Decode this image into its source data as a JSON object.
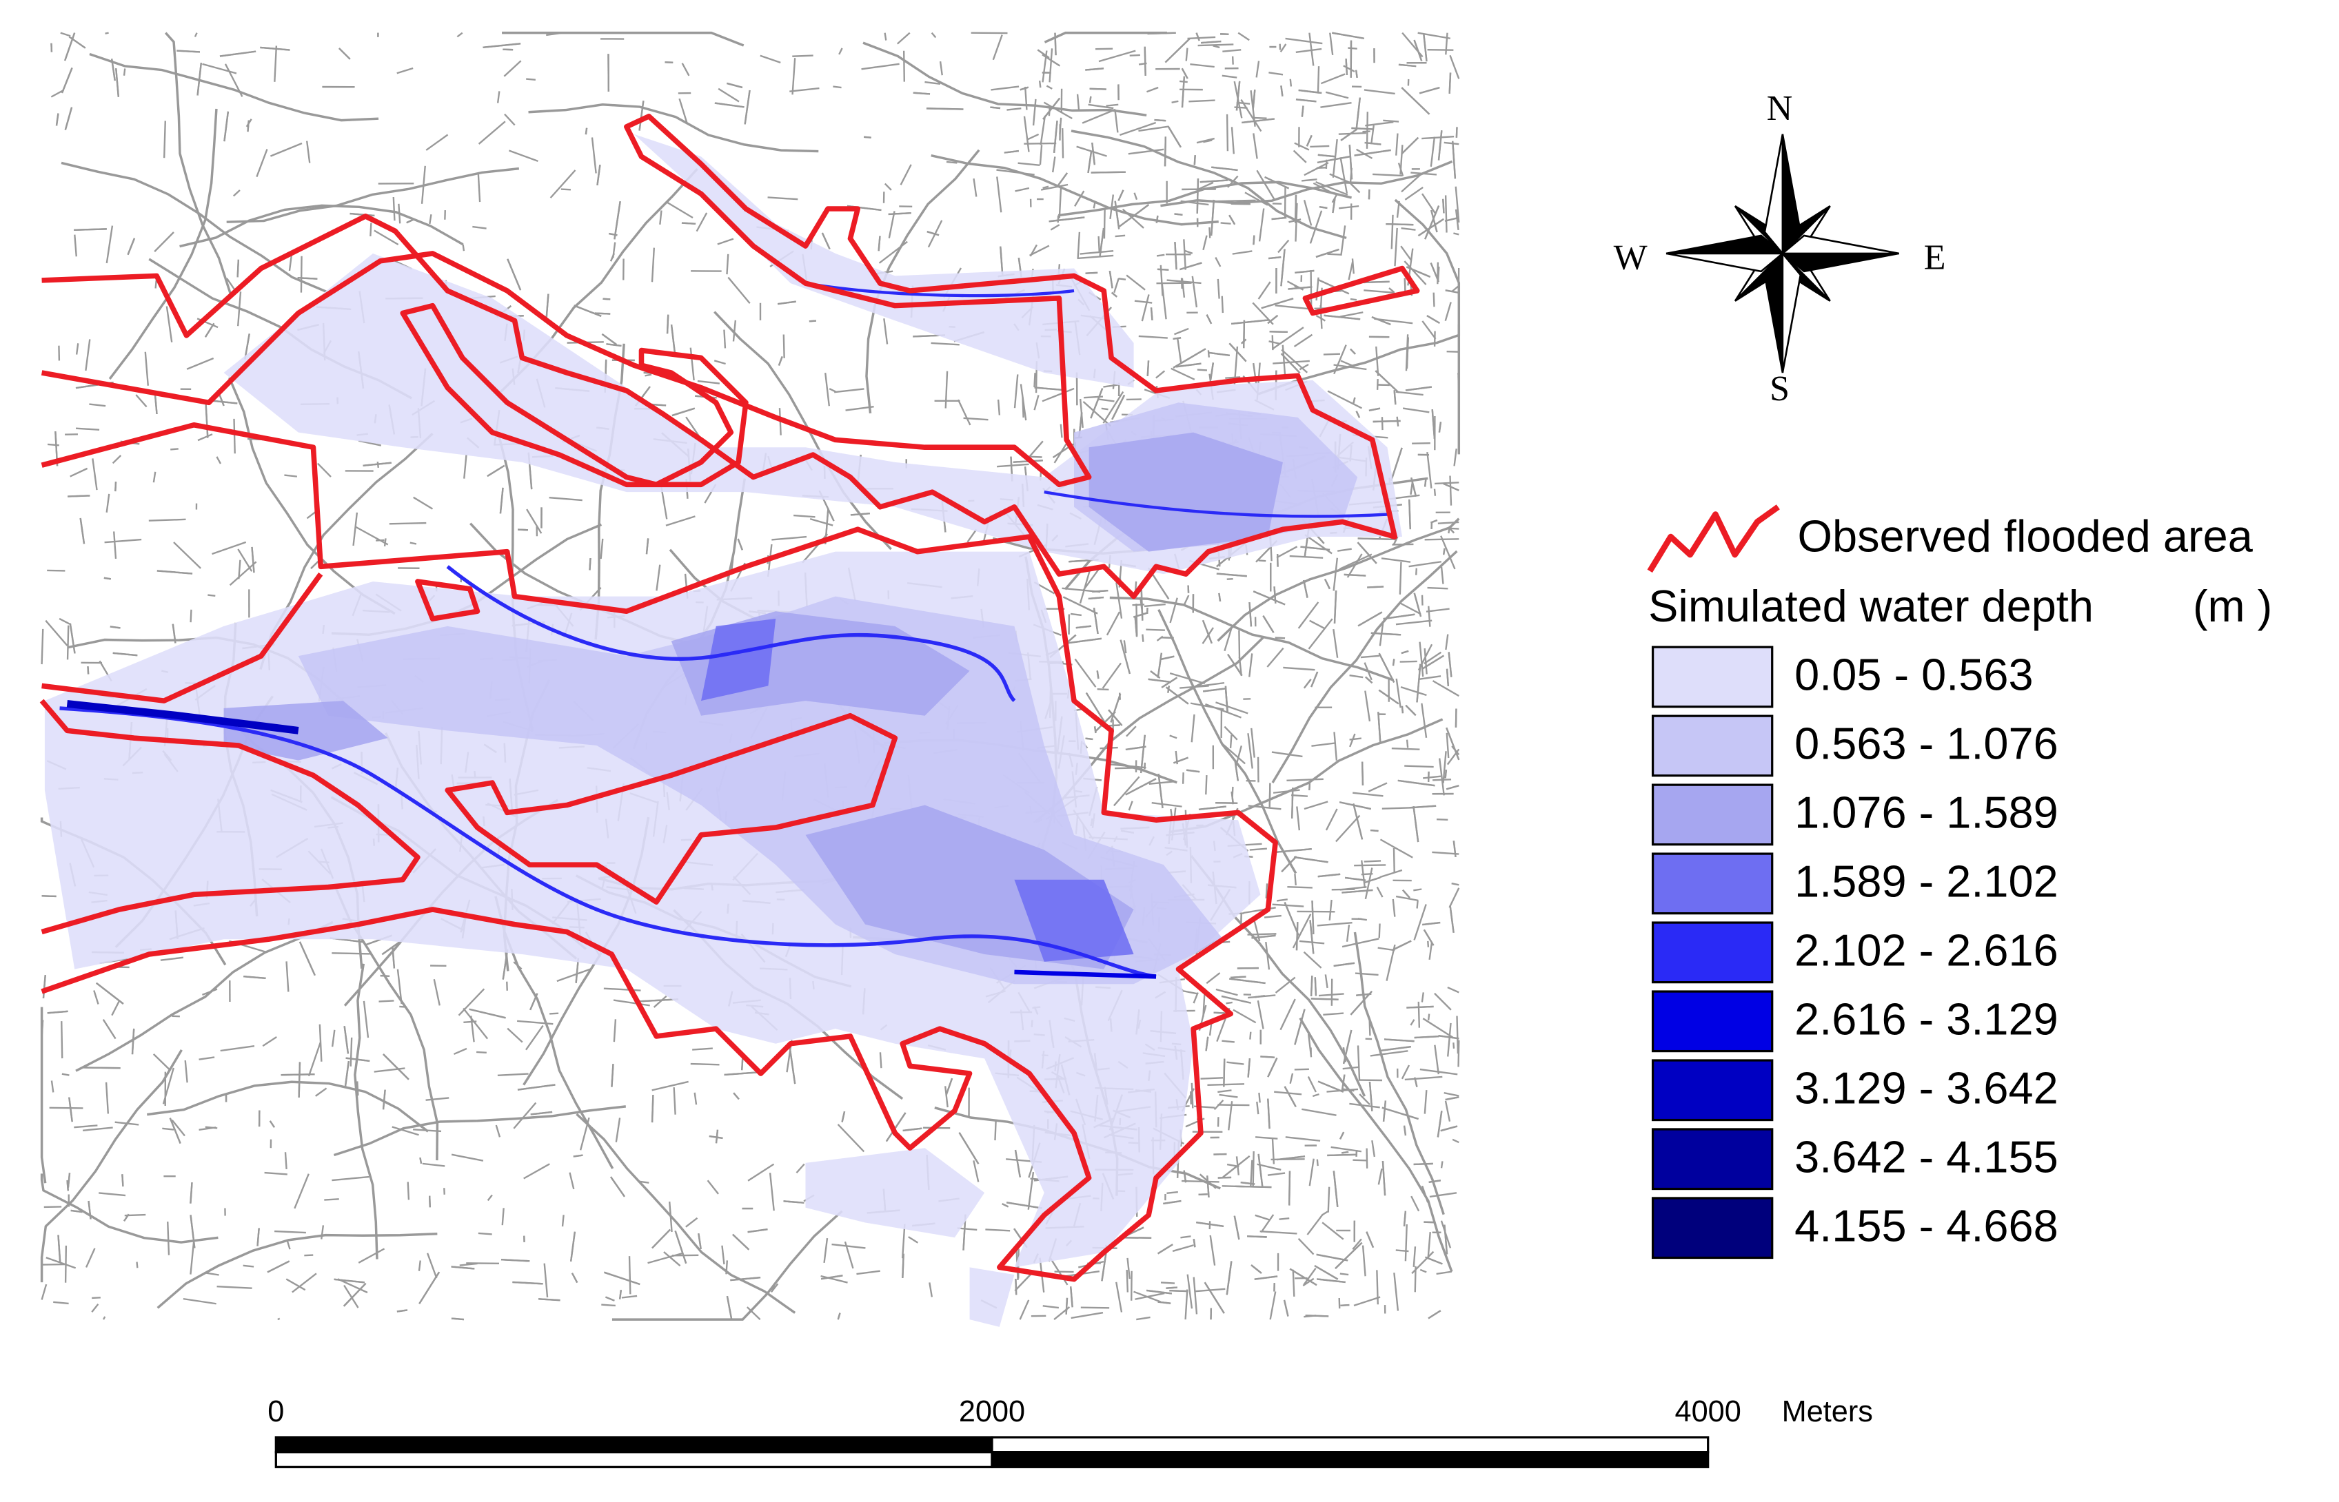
{
  "compass": {
    "north": "N",
    "west": "W",
    "east": "E",
    "south": "S"
  },
  "legend": {
    "observed_label": "Observed flooded area",
    "observed_color": "#ec1c24",
    "simulated_title": "Simulated water depth",
    "unit": "(m )",
    "classes": [
      {
        "label": "0.05 - 0.563",
        "color": "#dedefa"
      },
      {
        "label": "0.563 - 1.076",
        "color": "#c6c6f6"
      },
      {
        "label": "1.076 - 1.589",
        "color": "#a6a6f0"
      },
      {
        "label": "1.589 - 2.102",
        "color": "#6e6ef2"
      },
      {
        "label": "2.102 - 2.616",
        "color": "#2a2af6"
      },
      {
        "label": "2.616 - 3.129",
        "color": "#0000e4"
      },
      {
        "label": "3.129 - 3.642",
        "color": "#0000c2"
      },
      {
        "label": "3.642 - 4.155",
        "color": "#00009e"
      },
      {
        "label": "4.155 - 4.668",
        "color": "#00007c"
      }
    ]
  },
  "scale_bar": {
    "ticks": [
      0,
      2000,
      4000
    ],
    "unit": "Meters"
  }
}
